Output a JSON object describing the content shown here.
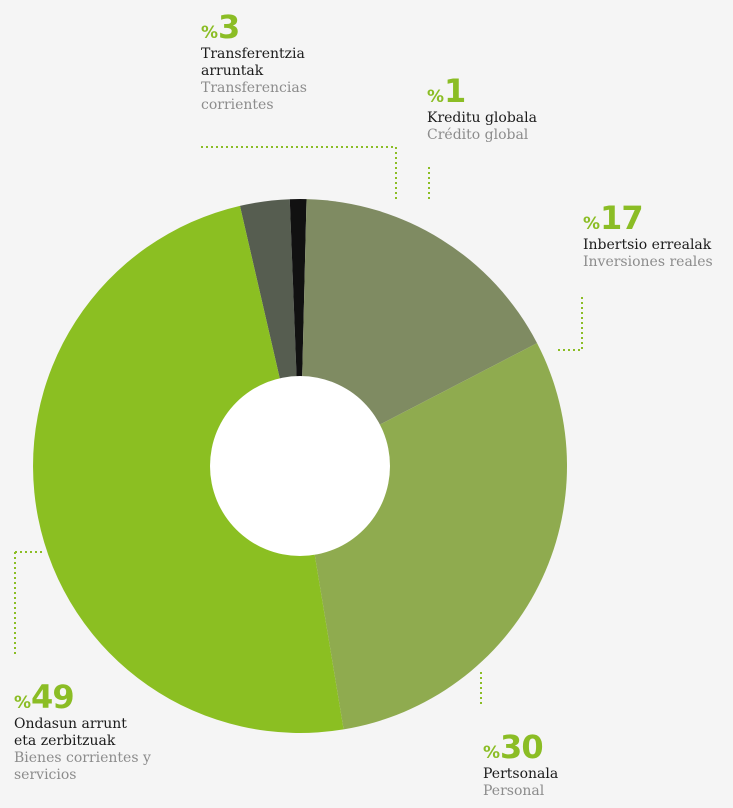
{
  "chart_data": {
    "type": "pie",
    "style": "donut",
    "percent_symbol": "%",
    "slices": [
      {
        "value": 3,
        "label_eu": "Transferentzia arruntak",
        "label_es": "Transferencias corrientes",
        "color": "#565d50"
      },
      {
        "value": 1,
        "label_eu": "Kreditu globala",
        "label_es": "Crédito global",
        "color": "#111111"
      },
      {
        "value": 17,
        "label_eu": "Inbertsio errealak",
        "label_es": "Inversiones reales",
        "color": "#7f8b62"
      },
      {
        "value": 30,
        "label_eu": "Pertsonala",
        "label_es": "Personal",
        "color": "#8fab4f"
      },
      {
        "value": 49,
        "label_eu": "Ondasun arrunt eta zerbitzuak",
        "label_es": "Bienes corrientes y servicios",
        "color": "#8bbf22"
      }
    ],
    "leader_color": "#8bbd25"
  }
}
